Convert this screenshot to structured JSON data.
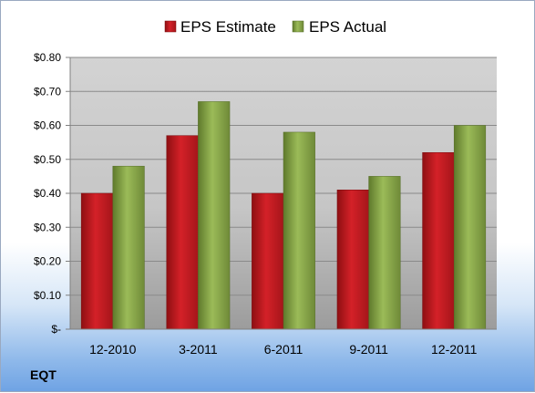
{
  "chart_data": {
    "type": "bar",
    "title": "",
    "xlabel": "",
    "ylabel": "",
    "categories": [
      "12-2010",
      "3-2011",
      "6-2011",
      "9-2011",
      "12-2011"
    ],
    "series": [
      {
        "name": "EPS Estimate",
        "values": [
          0.4,
          0.57,
          0.4,
          0.41,
          0.52
        ],
        "color": "#c8191f"
      },
      {
        "name": "EPS Actual",
        "values": [
          0.48,
          0.67,
          0.58,
          0.45,
          0.6
        ],
        "color": "#8aaa48"
      }
    ],
    "ylim": [
      0,
      0.8
    ],
    "yticks": [
      0,
      0.1,
      0.2,
      0.3,
      0.4,
      0.5,
      0.6,
      0.7,
      0.8
    ],
    "ytick_labels": [
      "$-",
      "$0.10",
      "$0.20",
      "$0.30",
      "$0.40",
      "$0.50",
      "$0.60",
      "$0.70",
      "$0.80"
    ],
    "grid": true,
    "legend": "top-center"
  },
  "ticker": "EQT"
}
